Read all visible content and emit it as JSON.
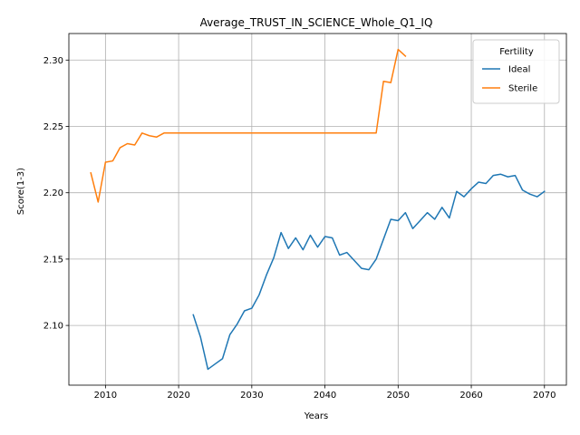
{
  "chart_data": {
    "type": "line",
    "title": "Average_TRUST_IN_SCIENCE_Whole_Q1_IQ",
    "xlabel": "Years",
    "ylabel": "Score(1-3)",
    "xlim": [
      2005,
      2073
    ],
    "ylim": [
      2.055,
      2.32
    ],
    "xticks": [
      2010,
      2020,
      2030,
      2040,
      2050,
      2060,
      2070
    ],
    "yticks": [
      2.1,
      2.15,
      2.2,
      2.25,
      2.3
    ],
    "ytick_labels": [
      "2.10",
      "2.15",
      "2.20",
      "2.25",
      "2.30"
    ],
    "grid": true,
    "legend": {
      "title": "Fertility",
      "placement": "top-right"
    },
    "series": [
      {
        "name": "Ideal",
        "color": "#1f77b4",
        "x": [
          2022,
          2023,
          2024,
          2025,
          2026,
          2027,
          2028,
          2029,
          2030,
          2031,
          2032,
          2033,
          2034,
          2035,
          2036,
          2037,
          2038,
          2039,
          2040,
          2041,
          2042,
          2043,
          2044,
          2045,
          2046,
          2047,
          2048,
          2049,
          2050,
          2051,
          2052,
          2053,
          2054,
          2055,
          2056,
          2057,
          2058,
          2059,
          2060,
          2061,
          2062,
          2063,
          2064,
          2065,
          2066,
          2067,
          2068,
          2069,
          2070
        ],
        "y": [
          2.108,
          2.091,
          2.067,
          2.071,
          2.075,
          2.093,
          2.101,
          2.111,
          2.113,
          2.123,
          2.138,
          2.151,
          2.17,
          2.158,
          2.166,
          2.157,
          2.168,
          2.159,
          2.167,
          2.166,
          2.153,
          2.155,
          2.149,
          2.143,
          2.142,
          2.15,
          2.165,
          2.18,
          2.179,
          2.185,
          2.173,
          2.179,
          2.185,
          2.18,
          2.189,
          2.181,
          2.201,
          2.197,
          2.203,
          2.208,
          2.207,
          2.213,
          2.214,
          2.212,
          2.213,
          2.202,
          2.199,
          2.197,
          2.201
        ]
      },
      {
        "name": "Sterile",
        "color": "#ff7f0e",
        "x": [
          2008,
          2009,
          2010,
          2011,
          2012,
          2013,
          2014,
          2015,
          2016,
          2017,
          2018,
          2019,
          2020,
          2021,
          2022,
          2023,
          2024,
          2025,
          2026,
          2027,
          2028,
          2029,
          2030,
          2031,
          2032,
          2033,
          2034,
          2035,
          2036,
          2037,
          2038,
          2039,
          2040,
          2041,
          2042,
          2043,
          2044,
          2045,
          2046,
          2047,
          2048,
          2049,
          2050,
          2051
        ],
        "y": [
          2.215,
          2.193,
          2.223,
          2.224,
          2.234,
          2.237,
          2.236,
          2.245,
          2.243,
          2.242,
          2.245,
          2.245,
          2.245,
          2.245,
          2.245,
          2.245,
          2.245,
          2.245,
          2.245,
          2.245,
          2.245,
          2.245,
          2.245,
          2.245,
          2.245,
          2.245,
          2.245,
          2.245,
          2.245,
          2.245,
          2.245,
          2.245,
          2.245,
          2.245,
          2.245,
          2.245,
          2.245,
          2.245,
          2.245,
          2.245,
          2.284,
          2.283,
          2.308,
          2.303
        ]
      }
    ]
  }
}
